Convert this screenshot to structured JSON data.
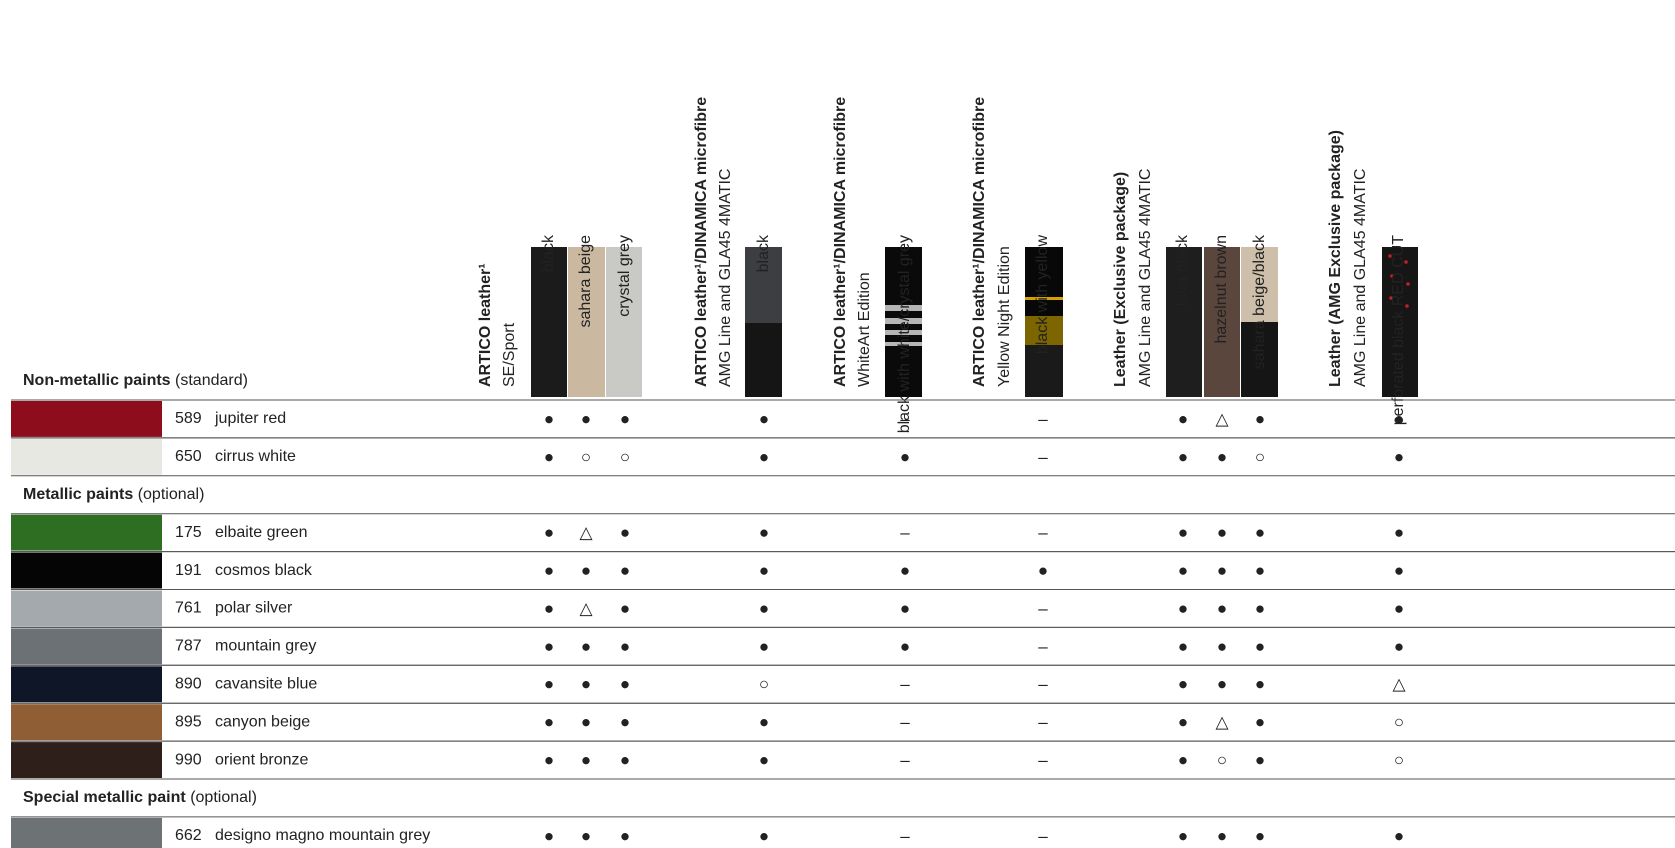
{
  "groups": [
    {
      "title": "ARTICO leather¹",
      "subtitle": "SE/Sport",
      "colors": [
        "black",
        "sahara beige",
        "crystal grey"
      ]
    },
    {
      "title": "ARTICO leather¹/DINAMICA microfibre",
      "subtitle": "AMG Line and GLA45 4MATIC",
      "colors": [
        "black"
      ]
    },
    {
      "title": "ARTICO leather¹/DINAMICA microfibre",
      "subtitle": "WhiteArt Edition",
      "colors": [
        "black with white/crystal grey"
      ]
    },
    {
      "title": "ARTICO leather¹/DINAMICA microfibre",
      "subtitle": "Yellow Night Edition",
      "colors": [
        "black with yellow"
      ]
    },
    {
      "title": "Leather (Exclusive package)",
      "subtitle": "AMG Line and GLA45 4MATIC",
      "colors": [
        "lava black",
        "hazelnut brown",
        "sahara beige/black"
      ]
    },
    {
      "title": "Leather (AMG Exclusive package)",
      "subtitle": "AMG Line and GLA45 4MATIC",
      "colors": [
        "perforated black RED CUT"
      ]
    }
  ],
  "sections": [
    {
      "title": "Non-metallic paints",
      "note": "(standard)",
      "rows": [
        {
          "code": "589",
          "name": "jupiter red",
          "color": "#8d0d1d",
          "marks": [
            "●",
            "●",
            "●",
            "●",
            "–",
            "–",
            "●",
            "△",
            "●",
            "●"
          ]
        },
        {
          "code": "650",
          "name": "cirrus white",
          "color": "#e6e8e1",
          "marks": [
            "●",
            "○",
            "○",
            "●",
            "●",
            "–",
            "●",
            "●",
            "○",
            "●"
          ]
        }
      ]
    },
    {
      "title": "Metallic paints",
      "note": "(optional)",
      "rows": [
        {
          "code": "175",
          "name": "elbaite green",
          "color": "#2e6e23",
          "marks": [
            "●",
            "△",
            "●",
            "●",
            "–",
            "–",
            "●",
            "●",
            "●",
            "●"
          ]
        },
        {
          "code": "191",
          "name": "cosmos black",
          "color": "#050505",
          "marks": [
            "●",
            "●",
            "●",
            "●",
            "●",
            "●",
            "●",
            "●",
            "●",
            "●"
          ]
        },
        {
          "code": "761",
          "name": "polar silver",
          "color": "#a4a9ad",
          "marks": [
            "●",
            "△",
            "●",
            "●",
            "●",
            "–",
            "●",
            "●",
            "●",
            "●"
          ]
        },
        {
          "code": "787",
          "name": "mountain grey",
          "color": "#6b7174",
          "marks": [
            "●",
            "●",
            "●",
            "●",
            "●",
            "–",
            "●",
            "●",
            "●",
            "●"
          ]
        },
        {
          "code": "890",
          "name": "cavansite blue",
          "color": "#0f1628",
          "marks": [
            "●",
            "●",
            "●",
            "○",
            "–",
            "–",
            "●",
            "●",
            "●",
            "△"
          ]
        },
        {
          "code": "895",
          "name": "canyon beige",
          "color": "#8f5e34",
          "marks": [
            "●",
            "●",
            "●",
            "●",
            "–",
            "–",
            "●",
            "△",
            "●",
            "○"
          ]
        },
        {
          "code": "990",
          "name": "orient bronze",
          "color": "#2e1f1b",
          "marks": [
            "●",
            "●",
            "●",
            "●",
            "–",
            "–",
            "●",
            "○",
            "●",
            "○"
          ]
        }
      ]
    },
    {
      "title": "Special metallic paint",
      "note": "(optional)",
      "rows": [
        {
          "code": "662",
          "name": "designo magno mountain grey",
          "color": "#6d7375",
          "marks": [
            "●",
            "●",
            "●",
            "●",
            "–",
            "–",
            "●",
            "●",
            "●",
            "●"
          ]
        }
      ]
    }
  ]
}
